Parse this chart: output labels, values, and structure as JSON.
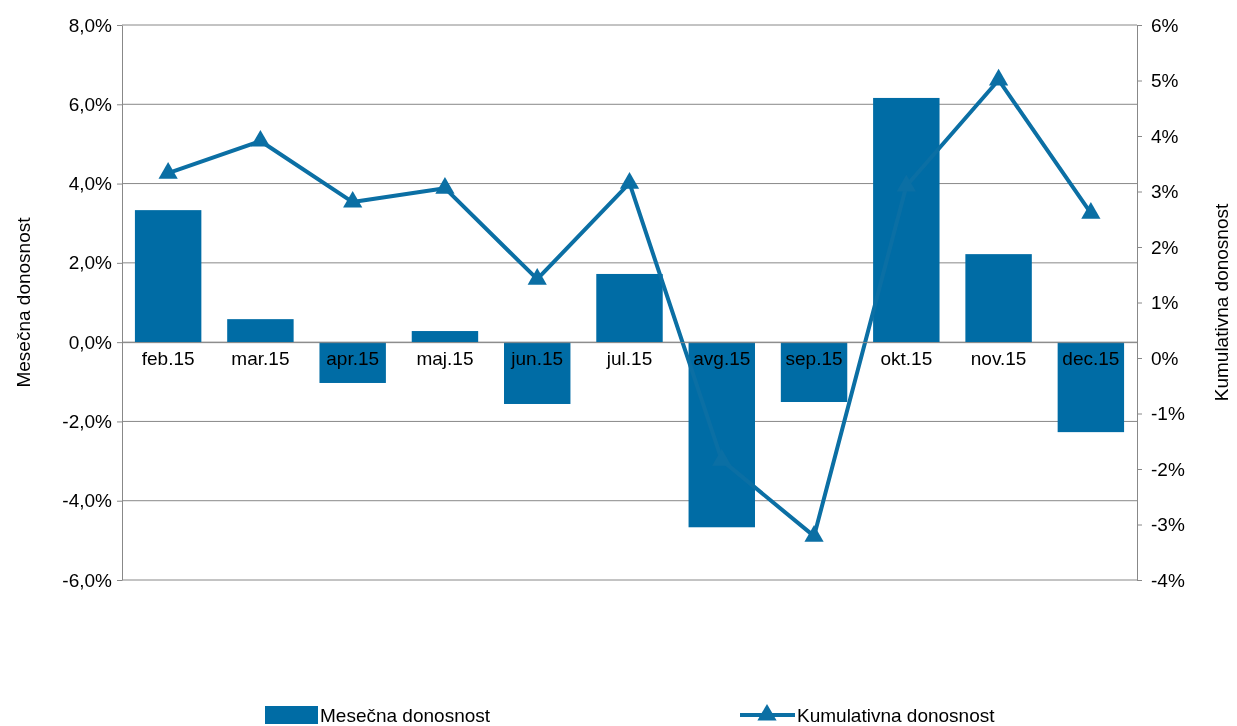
{
  "chart_data": {
    "type": "bar",
    "ylabel": "Mesečna donosnost",
    "y2label": "Kumulativna donosnost",
    "categories": [
      "feb.15",
      "mar.15",
      "apr.15",
      "maj.15",
      "jun.15",
      "jul.15",
      "avg.15",
      "sep.15",
      "okt.15",
      "nov.15",
      "dec.15"
    ],
    "series": [
      {
        "name": "Mesečna donosnost",
        "color": "#006ca5",
        "values": [
          3.33,
          0.58,
          -1.03,
          0.28,
          -1.56,
          1.72,
          -4.67,
          -1.51,
          6.16,
          2.22,
          -2.27
        ]
      },
      {
        "name": "Kumulativna donosnost",
        "type": "line",
        "axis": "y2",
        "color": "#0b6fa4",
        "marker": "triangle",
        "values": [
          3.33,
          3.91,
          2.81,
          3.06,
          1.42,
          3.15,
          -1.84,
          -3.21,
          3.1,
          5.01,
          2.61
        ]
      }
    ],
    "ylim": [
      -6,
      8
    ],
    "yticks": [
      {
        "value": -6,
        "label": "-6,0%"
      },
      {
        "value": -4,
        "label": "-4,0%"
      },
      {
        "value": -2,
        "label": "-2,0%"
      },
      {
        "value": 0,
        "label": "0,0%"
      },
      {
        "value": 2,
        "label": "2,0%"
      },
      {
        "value": 4,
        "label": "4,0%"
      },
      {
        "value": 6,
        "label": "6,0%"
      },
      {
        "value": 8,
        "label": "8,0%"
      }
    ],
    "y2lim": [
      -4,
      6
    ],
    "y2ticks": [
      {
        "value": -4,
        "label": "-4%"
      },
      {
        "value": -3,
        "label": "-3%"
      },
      {
        "value": -2,
        "label": "-2%"
      },
      {
        "value": -1,
        "label": "-1%"
      },
      {
        "value": 0,
        "label": "0%"
      },
      {
        "value": 1,
        "label": "1%"
      },
      {
        "value": 2,
        "label": "2%"
      },
      {
        "value": 3,
        "label": "3%"
      },
      {
        "value": 4,
        "label": "4%"
      },
      {
        "value": 5,
        "label": "5%"
      },
      {
        "value": 6,
        "label": "6%"
      }
    ],
    "grid": "y",
    "legend": "bottom"
  }
}
